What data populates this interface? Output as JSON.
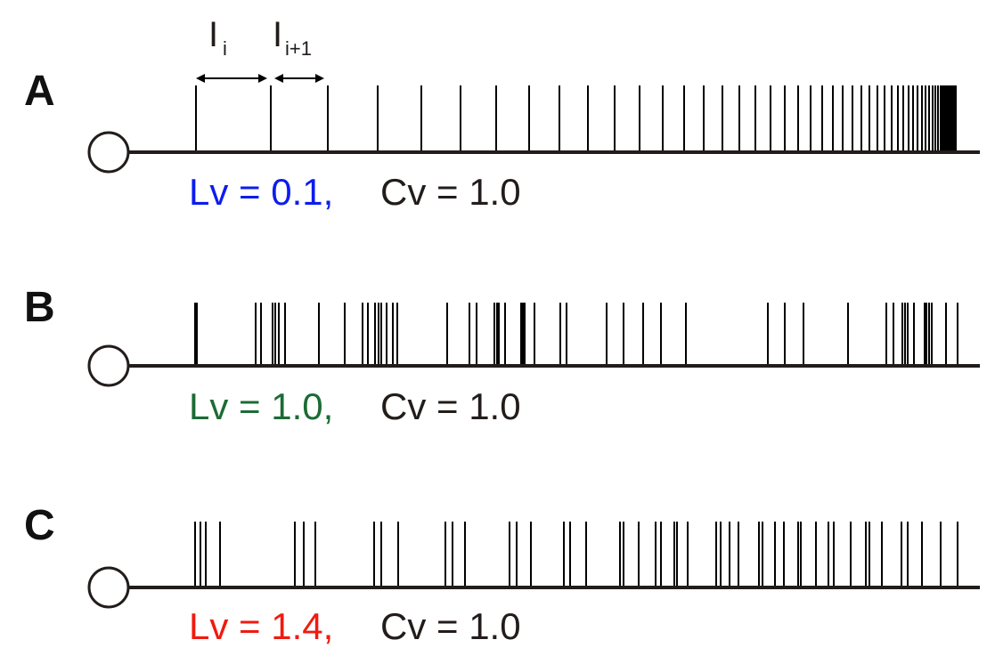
{
  "panels": [
    {
      "letter": "A",
      "lv_text": "Lv = 0.1,",
      "lv_color": "#0b1cf0",
      "cv_text": "Cv = 1.0",
      "spike_times": [
        220,
        304,
        368,
        424,
        473,
        517,
        557,
        594,
        628,
        660,
        690,
        718,
        744,
        768,
        790,
        811,
        830,
        848,
        865,
        881,
        896,
        910,
        923,
        935,
        946,
        957,
        967,
        976,
        985,
        993,
        1001,
        1008,
        1014,
        1020,
        1025,
        1030,
        1035,
        1039,
        1043,
        1047,
        1050,
        1053,
        1056,
        1058,
        1060,
        1062,
        1064,
        1066,
        1067,
        1068,
        1069,
        1070,
        1071,
        1072,
        1073
      ]
    },
    {
      "letter": "B",
      "lv_text": "Lv = 1.0,",
      "lv_color": "#1c6b35",
      "cv_text": "Cv = 1.0",
      "spike_times": [
        219,
        221,
        287,
        293,
        306,
        309,
        313,
        320,
        358,
        387,
        407,
        413,
        421,
        425,
        428,
        434,
        441,
        446,
        502,
        527,
        535,
        555,
        558,
        560,
        567,
        585,
        587,
        589,
        600,
        629,
        636,
        681,
        700,
        722,
        742,
        770,
        862,
        881,
        902,
        952,
        995,
        1003,
        1013,
        1016,
        1019,
        1026,
        1038,
        1040,
        1043,
        1046,
        1062,
        1075
      ]
    },
    {
      "letter": "C",
      "lv_text": "Lv = 1.4,",
      "lv_color": "#f01a10",
      "cv_text": "Cv = 1.0",
      "spike_times": [
        219,
        225,
        231,
        247,
        331,
        341,
        354,
        420,
        428,
        447,
        500,
        508,
        522,
        572,
        580,
        596,
        633,
        640,
        658,
        696,
        700,
        717,
        736,
        742,
        757,
        760,
        772,
        804,
        809,
        819,
        829,
        852,
        856,
        870,
        880,
        896,
        899,
        916,
        930,
        936,
        955,
        972,
        976,
        990,
        1012,
        1019,
        1035,
        1056,
        1075
      ]
    }
  ],
  "intervals": {
    "first": {
      "main": "I",
      "sub": "i"
    },
    "second": {
      "main": "I",
      "sub": "i+1"
    }
  }
}
